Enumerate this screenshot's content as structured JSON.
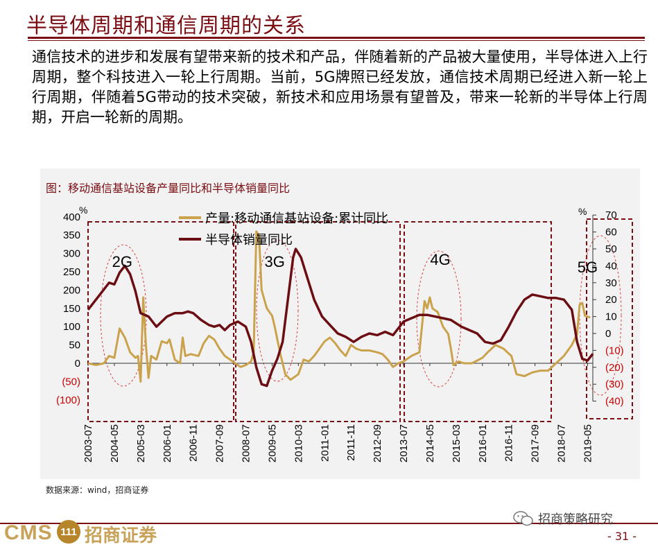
{
  "page": {
    "title": "半导体周期和通信周期的关系",
    "body": "通信技术的进步和发展有望带来新的技术和产品，伴随着新的产品被大量使用，半导体进入上行周期，整个科技进入一轮上行周期。当前，5G牌照已经发放，通信技术周期已经进入新一轮上行周期，伴随着5G带动的技术突破，新技术和应用场景有望普及，带来一轮新的半导体上行周期，开启一轮新的周期。",
    "source": "数据来源：wind，招商证券",
    "logo_en": "CMS",
    "logo_badge": "111",
    "logo_cn": "招商证券",
    "wechat_label": "招商策略研究",
    "page_number": "- 31 -"
  },
  "colors": {
    "title": "#7a0c12",
    "series_gold": "#c9a24b",
    "series_maroon": "#6b0d12",
    "box_border": "#7a0c12",
    "ellipse": "#d94040",
    "red_tick": "#cc0000"
  },
  "chart_data": {
    "type": "line",
    "title": "图：移动通信基站设备产量同比和半导体销量同比",
    "y_left": {
      "unit": "%",
      "range": [
        -100,
        400
      ],
      "ticks": [
        400,
        350,
        300,
        250,
        200,
        150,
        100,
        50,
        0,
        -50,
        -100
      ],
      "tick_labels": [
        "400",
        "350",
        "300",
        "250",
        "200",
        "150",
        "100",
        "50",
        "0",
        "(50)",
        "(100)"
      ]
    },
    "y_right": {
      "unit": "%",
      "range": [
        -40,
        70
      ],
      "ticks": [
        70,
        60,
        50,
        40,
        30,
        20,
        10,
        0,
        -10,
        -20,
        -30,
        -40
      ],
      "tick_labels": [
        "70",
        "60",
        "50",
        "40",
        "30",
        "20",
        "10",
        "0",
        "(10)",
        "(20)",
        "(30)",
        "(40)"
      ]
    },
    "x_range": [
      "2003-07",
      "2019-07"
    ],
    "x_ticks": [
      "2003-07",
      "2004-05",
      "2005-03",
      "2006-01",
      "2006-11",
      "2007-09",
      "2008-07",
      "2009-05",
      "2010-03",
      "2011-01",
      "2011-11",
      "2012-09",
      "2013-07",
      "2014-05",
      "2015-03",
      "2016-01",
      "2016-11",
      "2017-09",
      "2018-07",
      "2019-05"
    ],
    "legend_position": "top-center",
    "series": [
      {
        "name": "产量:移动通信基站设备:累计同比",
        "axis": "left",
        "points": [
          [
            "2003-07",
            0
          ],
          [
            "2003-10",
            -5
          ],
          [
            "2004-01",
            0
          ],
          [
            "2004-03",
            20
          ],
          [
            "2004-05",
            15
          ],
          [
            "2004-07",
            95
          ],
          [
            "2004-09",
            70
          ],
          [
            "2004-11",
            30
          ],
          [
            "2005-01",
            15
          ],
          [
            "2005-02",
            20
          ],
          [
            "2005-03",
            -50
          ],
          [
            "2005-04",
            180
          ],
          [
            "2005-05",
            50
          ],
          [
            "2005-06",
            -40
          ],
          [
            "2005-07",
            20
          ],
          [
            "2005-09",
            10
          ],
          [
            "2005-11",
            60
          ],
          [
            "2006-01",
            55
          ],
          [
            "2006-02",
            65
          ],
          [
            "2006-04",
            10
          ],
          [
            "2006-06",
            0
          ],
          [
            "2006-07",
            70
          ],
          [
            "2006-08",
            20
          ],
          [
            "2006-10",
            25
          ],
          [
            "2007-01",
            20
          ],
          [
            "2007-03",
            55
          ],
          [
            "2007-05",
            75
          ],
          [
            "2007-07",
            65
          ],
          [
            "2007-09",
            40
          ],
          [
            "2007-11",
            20
          ],
          [
            "2008-01",
            10
          ],
          [
            "2008-03",
            0
          ],
          [
            "2008-05",
            -10
          ],
          [
            "2008-07",
            -5
          ],
          [
            "2008-09",
            5
          ],
          [
            "2008-10",
            30
          ],
          [
            "2008-11",
            360
          ],
          [
            "2008-12",
            350
          ],
          [
            "2009-01",
            200
          ],
          [
            "2009-03",
            150
          ],
          [
            "2009-05",
            130
          ],
          [
            "2009-06",
            100
          ],
          [
            "2009-08",
            30
          ],
          [
            "2009-10",
            -30
          ],
          [
            "2009-12",
            -45
          ],
          [
            "2010-03",
            -30
          ],
          [
            "2010-05",
            10
          ],
          [
            "2010-07",
            5
          ],
          [
            "2010-09",
            20
          ],
          [
            "2010-11",
            40
          ],
          [
            "2011-01",
            60
          ],
          [
            "2011-03",
            70
          ],
          [
            "2011-05",
            55
          ],
          [
            "2011-07",
            35
          ],
          [
            "2011-09",
            20
          ],
          [
            "2011-11",
            50
          ],
          [
            "2012-01",
            40
          ],
          [
            "2012-03",
            35
          ],
          [
            "2012-06",
            35
          ],
          [
            "2012-09",
            30
          ],
          [
            "2012-11",
            25
          ],
          [
            "2013-01",
            10
          ],
          [
            "2013-03",
            -10
          ],
          [
            "2013-05",
            0
          ],
          [
            "2013-07",
            5
          ],
          [
            "2013-10",
            20
          ],
          [
            "2014-01",
            30
          ],
          [
            "2014-03",
            170
          ],
          [
            "2014-04",
            150
          ],
          [
            "2014-05",
            180
          ],
          [
            "2014-06",
            150
          ],
          [
            "2014-08",
            140
          ],
          [
            "2014-10",
            100
          ],
          [
            "2014-12",
            80
          ],
          [
            "2015-01",
            40
          ],
          [
            "2015-02",
            -5
          ],
          [
            "2015-04",
            5
          ],
          [
            "2015-06",
            0
          ],
          [
            "2015-09",
            0
          ],
          [
            "2016-01",
            15
          ],
          [
            "2016-03",
            30
          ],
          [
            "2016-06",
            50
          ],
          [
            "2016-09",
            40
          ],
          [
            "2016-12",
            20
          ],
          [
            "2017-02",
            -30
          ],
          [
            "2017-05",
            -35
          ],
          [
            "2017-08",
            -25
          ],
          [
            "2017-11",
            -20
          ],
          [
            "2018-02",
            -20
          ],
          [
            "2018-05",
            0
          ],
          [
            "2018-08",
            20
          ],
          [
            "2018-11",
            50
          ],
          [
            "2019-01",
            80
          ],
          [
            "2019-02",
            160
          ],
          [
            "2019-03",
            165
          ],
          [
            "2019-04",
            130
          ],
          [
            "2019-06",
            125
          ]
        ]
      },
      {
        "name": "半导体销量同比",
        "axis": "right",
        "points": [
          [
            "2003-07",
            14
          ],
          [
            "2003-10",
            20
          ],
          [
            "2004-01",
            26
          ],
          [
            "2004-03",
            30
          ],
          [
            "2004-05",
            29
          ],
          [
            "2004-07",
            36
          ],
          [
            "2004-09",
            40
          ],
          [
            "2004-11",
            35
          ],
          [
            "2005-01",
            25
          ],
          [
            "2005-03",
            12
          ],
          [
            "2005-06",
            10
          ],
          [
            "2005-09",
            4
          ],
          [
            "2006-01",
            10
          ],
          [
            "2006-04",
            12
          ],
          [
            "2006-07",
            12
          ],
          [
            "2006-09",
            13
          ],
          [
            "2006-11",
            12
          ],
          [
            "2007-02",
            8
          ],
          [
            "2007-05",
            5
          ],
          [
            "2007-07",
            4
          ],
          [
            "2007-09",
            5
          ],
          [
            "2007-11",
            2
          ],
          [
            "2008-01",
            5
          ],
          [
            "2008-04",
            7
          ],
          [
            "2008-07",
            4
          ],
          [
            "2008-09",
            -5
          ],
          [
            "2008-11",
            -20
          ],
          [
            "2009-01",
            -30
          ],
          [
            "2009-03",
            -31
          ],
          [
            "2009-05",
            -22
          ],
          [
            "2009-07",
            -15
          ],
          [
            "2009-09",
            -5
          ],
          [
            "2009-11",
            20
          ],
          [
            "2010-01",
            45
          ],
          [
            "2010-02",
            50
          ],
          [
            "2010-04",
            45
          ],
          [
            "2010-06",
            35
          ],
          [
            "2010-09",
            20
          ],
          [
            "2010-12",
            10
          ],
          [
            "2011-03",
            5
          ],
          [
            "2011-06",
            0
          ],
          [
            "2011-09",
            -2
          ],
          [
            "2011-12",
            -5
          ],
          [
            "2012-03",
            -2
          ],
          [
            "2012-06",
            0
          ],
          [
            "2012-09",
            -1
          ],
          [
            "2012-12",
            1
          ],
          [
            "2013-03",
            -1
          ],
          [
            "2013-07",
            7
          ],
          [
            "2013-10",
            9
          ],
          [
            "2014-01",
            11
          ],
          [
            "2014-04",
            11
          ],
          [
            "2014-07",
            10
          ],
          [
            "2014-10",
            9
          ],
          [
            "2015-01",
            8
          ],
          [
            "2015-05",
            4
          ],
          [
            "2015-08",
            2
          ],
          [
            "2015-11",
            0
          ],
          [
            "2016-02",
            -5
          ],
          [
            "2016-05",
            -6
          ],
          [
            "2016-08",
            -4
          ],
          [
            "2016-11",
            4
          ],
          [
            "2017-02",
            13
          ],
          [
            "2017-05",
            20
          ],
          [
            "2017-08",
            23
          ],
          [
            "2017-11",
            22
          ],
          [
            "2018-02",
            21
          ],
          [
            "2018-05",
            21
          ],
          [
            "2018-08",
            20
          ],
          [
            "2018-11",
            14
          ],
          [
            "2019-01",
            -5
          ],
          [
            "2019-03",
            -15
          ],
          [
            "2019-05",
            -16
          ],
          [
            "2019-07",
            -12
          ]
        ]
      }
    ],
    "annotations": [
      {
        "text": "2G",
        "x": "2004-08",
        "y_left": 290
      },
      {
        "text": "3G",
        "x": "2009-06",
        "y_left": 290
      },
      {
        "text": "4G",
        "x": "2014-09",
        "y_left": 295
      },
      {
        "text": "5G",
        "x": "2019-05",
        "y_left": 275
      }
    ]
  }
}
